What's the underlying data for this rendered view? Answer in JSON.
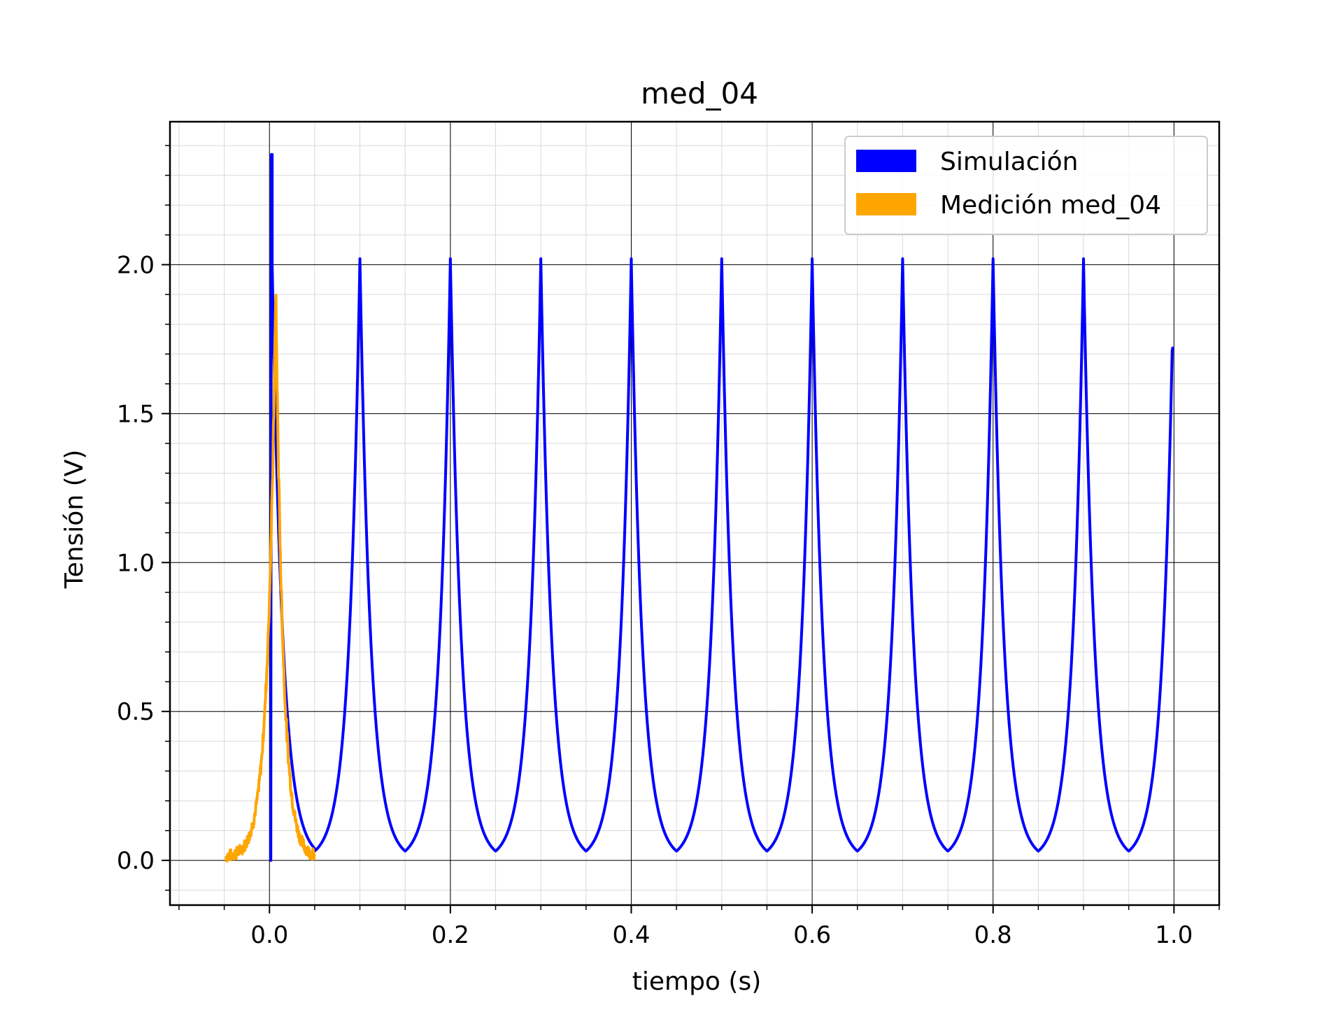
{
  "chart_data": {
    "type": "line",
    "title": "med_04",
    "xlabel": "tiempo (s)",
    "ylabel": "Tensión (V)",
    "xlim": [
      -0.11,
      1.05
    ],
    "ylim": [
      -0.15,
      2.48
    ],
    "xticks": [
      0.0,
      0.2,
      0.4,
      0.6,
      0.8,
      1.0
    ],
    "xtick_labels": [
      "0.0",
      "0.2",
      "0.4",
      "0.6",
      "0.8",
      "1.0"
    ],
    "yticks": [
      0.0,
      0.5,
      1.0,
      1.5,
      2.0
    ],
    "ytick_labels": [
      "0.0",
      "0.5",
      "1.0",
      "1.5",
      "2.0"
    ],
    "grid": true,
    "minor_grid": true,
    "legend_position": "upper right",
    "series": [
      {
        "name": "Simulación",
        "color": "#0000ff",
        "description_points": {
          "initial_step": {
            "x": 0.002,
            "y": 2.37
          },
          "period": 0.1,
          "peak_value": 2.02,
          "min_value": 0.015,
          "peak_times": [
            0.1,
            0.2,
            0.3,
            0.4,
            0.5,
            0.6,
            0.7,
            0.8,
            0.9
          ],
          "end": {
            "x": 1.0,
            "y": 1.72
          }
        }
      },
      {
        "name": "Medición med_04",
        "color": "#ffa500",
        "description_points": {
          "x_range": [
            -0.048,
            0.05
          ],
          "peak": {
            "x": 0.007,
            "y": 1.91
          },
          "baseline": 0.01
        }
      }
    ]
  }
}
